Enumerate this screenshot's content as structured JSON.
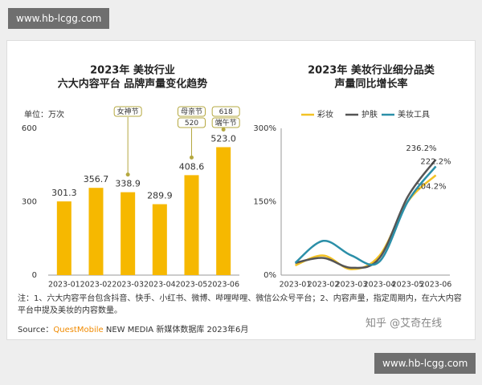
{
  "watermark_top": "www.hb-lcgg.com",
  "watermark_bottom": "www.hb-lcgg.com",
  "note": "注：1、六大内容平台包含抖音、快手、小红书、微博、哔哩哔哩、微信公众号平台；2、内容声量，指定周期内，在六大内容平台中提及美妆的内容数量。",
  "source": {
    "prefix": "Source：",
    "brand": "QuestMobile",
    "rest": "NEW MEDIA 新媒体数据库 2023年6月"
  },
  "credit": "知乎 @艾奇在线",
  "chart_data": [
    {
      "type": "bar",
      "title": [
        "2023年 美妆行业",
        "六大内容平台 品牌声量变化趋势"
      ],
      "unit": "单位：万次",
      "categories": [
        "2023-01",
        "2023-02",
        "2023-03",
        "2023-04",
        "2023-05",
        "2023-06"
      ],
      "values": [
        301.3,
        356.7,
        338.9,
        289.9,
        408.6,
        523.0
      ],
      "value_labels": [
        "301.3",
        "356.7",
        "338.9",
        "289.9",
        "408.6",
        "523.0"
      ],
      "color": "#f6b800",
      "ylim": [
        0,
        600
      ],
      "yticks": [
        0,
        300,
        600
      ],
      "annotations": [
        [
          "女神节"
        ],
        [
          "母亲节",
          "520"
        ],
        [
          "618",
          "端午节"
        ]
      ]
    },
    {
      "type": "line",
      "title": [
        "2023年 美妆行业细分品类",
        "声量同比增长率"
      ],
      "categories": [
        "2023-01",
        "2023-02",
        "2023-03",
        "2023-04",
        "2023-05",
        "2023-06"
      ],
      "ylim": [
        0,
        300
      ],
      "yticks": [
        {
          "value": 0,
          "label": "0%"
        },
        {
          "value": 150,
          "label": "150%"
        },
        {
          "value": 300,
          "label": "300%"
        }
      ],
      "legend": "top",
      "series": [
        {
          "name": "彩妆",
          "color": "#f3c224",
          "values": [
            20,
            40,
            12,
            40,
            150,
            204.2
          ],
          "value_labels": [
            null,
            null,
            null,
            null,
            null,
            "204.2%"
          ]
        },
        {
          "name": "护肤",
          "color": "#555555",
          "values": [
            25,
            35,
            15,
            35,
            160,
            236.2
          ],
          "value_labels": [
            null,
            null,
            null,
            null,
            null,
            "236.2%"
          ]
        },
        {
          "name": "美妆工具",
          "color": "#2b8fa8",
          "values": [
            25,
            70,
            40,
            28,
            150,
            222.2
          ],
          "value_labels": [
            null,
            null,
            null,
            null,
            null,
            "222.2%"
          ]
        }
      ]
    }
  ]
}
